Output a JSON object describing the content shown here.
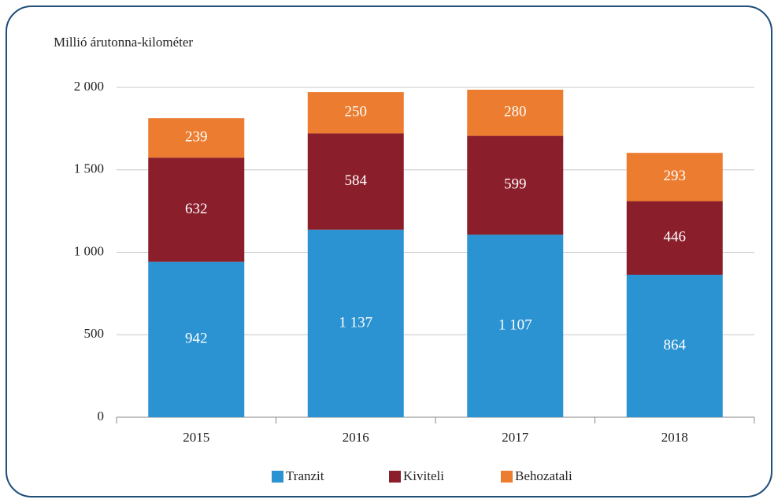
{
  "chart_data": {
    "type": "stacked_bar",
    "y_axis_label": "Millió árutonna-kilométer",
    "categories": [
      "2015",
      "2016",
      "2017",
      "2018"
    ],
    "series": [
      {
        "name": "Tranzit",
        "color": "#2b93d1",
        "values": [
          942,
          1137,
          1107,
          864
        ],
        "value_labels": [
          "942",
          "1 137",
          "1 107",
          "864"
        ]
      },
      {
        "name": "Kiviteli",
        "color": "#8b1e2b",
        "values": [
          632,
          584,
          599,
          446
        ]
      },
      {
        "name": "Behozatali",
        "color": "#ec7c30",
        "values": [
          239,
          250,
          280,
          293
        ]
      }
    ],
    "ylim": [
      0,
      2000
    ],
    "yticks": [
      0,
      500,
      {
        "value": 1000,
        "label": "1 000"
      },
      {
        "value": 1500,
        "label": "1 500"
      },
      {
        "value": 2000,
        "label": "2 000"
      }
    ],
    "grid": true,
    "legend": "bottom"
  }
}
